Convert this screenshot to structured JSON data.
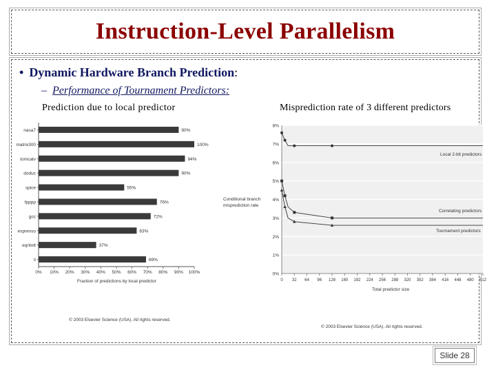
{
  "slide": {
    "title": "Instruction-Level Parallelism",
    "bullet_main": "Dynamic Hardware Branch Prediction",
    "bullet_colon": ":",
    "sub_bullet": "Performance of Tournament Predictors:",
    "caption_left": "Prediction due to local predictor",
    "caption_right": "Misprediction rate of 3 different predictors",
    "slide_number": "Slide 28"
  },
  "colors": {
    "title": "#8b0000",
    "bullet": "#101860",
    "bar": "#3a3a3a",
    "plot_bg": "#f0f0f0"
  },
  "chart_data": [
    {
      "type": "bar",
      "orientation": "horizontal",
      "categories": [
        "nasa7",
        "matrix300",
        "tomcatv",
        "doduc",
        "spice",
        "fpppp",
        "gcc",
        "espresso",
        "eqntott",
        "li"
      ],
      "values": [
        90,
        100,
        94,
        90,
        55,
        76,
        72,
        63,
        37,
        69
      ],
      "value_labels": [
        "90%",
        "100%",
        "94%",
        "90%",
        "55%",
        "76%",
        "72%",
        "63%",
        "37%",
        "69%"
      ],
      "xticks": [
        "0%",
        "10%",
        "20%",
        "30%",
        "40%",
        "50%",
        "60%",
        "70%",
        "80%",
        "90%",
        "100%"
      ],
      "xlim": [
        0,
        100
      ],
      "xlabel": "Fraction of predictions by local predictor",
      "copyright": "© 2003 Elsevier Science (USA). All rights reserved."
    },
    {
      "type": "line",
      "x": [
        0,
        8,
        16,
        32,
        128,
        512
      ],
      "series": [
        {
          "name": "Local 2-bit predictors",
          "values": [
            7.6,
            7.2,
            6.9,
            6.9,
            6.9,
            6.9
          ]
        },
        {
          "name": "Correlating predictors",
          "values": [
            5.0,
            4.2,
            3.6,
            3.3,
            3.0,
            3.0
          ]
        },
        {
          "name": "Tournament predictors",
          "values": [
            4.5,
            3.6,
            3.0,
            2.8,
            2.6,
            2.6
          ]
        }
      ],
      "xticks": [
        "0",
        "32",
        "64",
        "96",
        "128",
        "160",
        "192",
        "224",
        "256",
        "288",
        "320",
        "352",
        "384",
        "416",
        "448",
        "480",
        "512"
      ],
      "yticks": [
        "0%",
        "1%",
        "2%",
        "3%",
        "4%",
        "5%",
        "6%",
        "7%",
        "8%"
      ],
      "xlim": [
        0,
        512
      ],
      "ylim": [
        0,
        8
      ],
      "xlabel": "Total predictor size",
      "ylabel": "Conditional branch misprediction rate",
      "copyright": "© 2003 Elsevier Science (USA). All rights reserved."
    }
  ]
}
